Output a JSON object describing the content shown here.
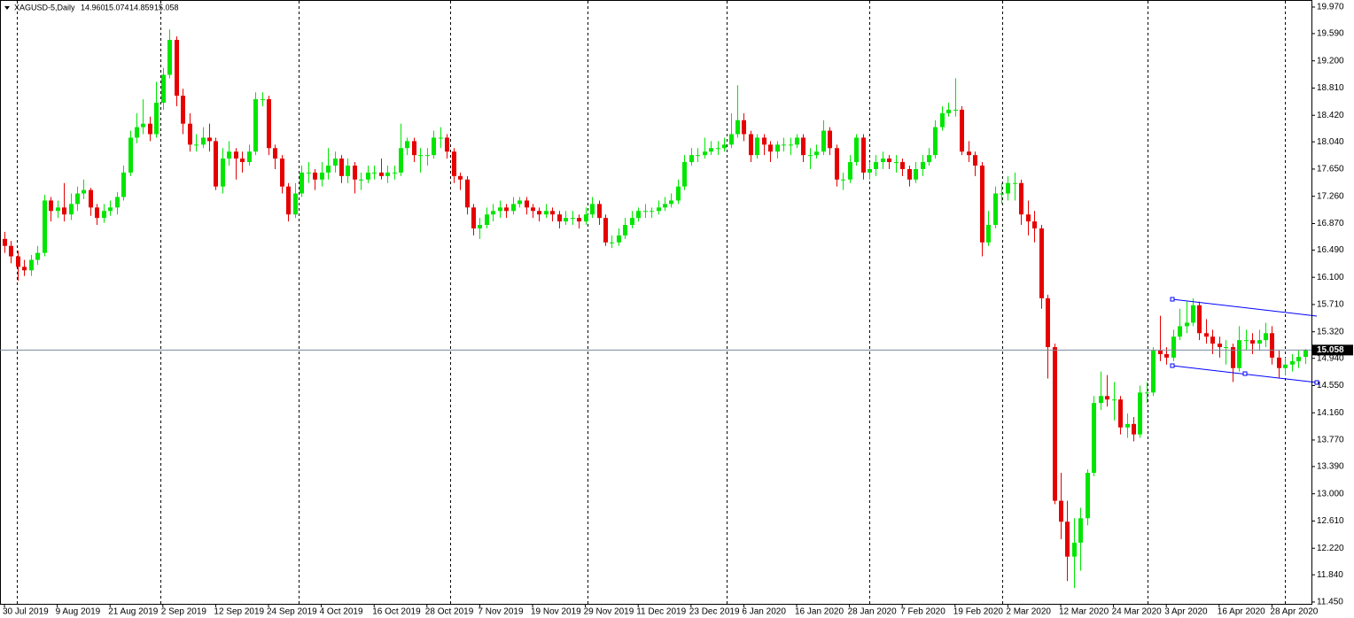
{
  "chart_data": {
    "type": "candlestick",
    "title": "XAGUSD-5,Daily",
    "title_values": [
      "14.960",
      "15.074",
      "14.859",
      "15.058"
    ],
    "up_color": "#00e600",
    "down_color": "#e60000",
    "ylim": [
      11.424,
      20.071
    ],
    "yticks": [
      {
        "value": 19.97,
        "label": "19.970"
      },
      {
        "value": 19.59,
        "label": "19.590"
      },
      {
        "value": 19.2,
        "label": "19.200"
      },
      {
        "value": 18.81,
        "label": "18.810"
      },
      {
        "value": 18.42,
        "label": "18.420"
      },
      {
        "value": 18.04,
        "label": "18.040"
      },
      {
        "value": 17.65,
        "label": "17.650"
      },
      {
        "value": 17.26,
        "label": "17.260"
      },
      {
        "value": 16.87,
        "label": "16.870"
      },
      {
        "value": 16.49,
        "label": "16.490"
      },
      {
        "value": 16.1,
        "label": "16.100"
      },
      {
        "value": 15.71,
        "label": "15.710"
      },
      {
        "value": 15.32,
        "label": "15.320"
      },
      {
        "value": 14.94,
        "label": "14.940"
      },
      {
        "value": 14.55,
        "label": "14.550"
      },
      {
        "value": 14.16,
        "label": "14.160"
      },
      {
        "value": 13.77,
        "label": "13.770"
      },
      {
        "value": 13.39,
        "label": "13.390"
      },
      {
        "value": 13,
        "label": "13.000"
      },
      {
        "value": 12.61,
        "label": "12.610"
      },
      {
        "value": 12.22,
        "label": "12.220"
      },
      {
        "value": 11.84,
        "label": "11.840"
      },
      {
        "value": 11.45,
        "label": "11.450"
      }
    ],
    "last_price": {
      "value": 15.058,
      "label": "15.058"
    },
    "categories": [
      "30 Jul 2019",
      null,
      null,
      null,
      null,
      null,
      null,
      null,
      "9 Aug 2019",
      null,
      null,
      null,
      null,
      null,
      null,
      null,
      "21 Aug 2019",
      null,
      null,
      null,
      null,
      null,
      null,
      null,
      "2 Sep 2019",
      null,
      null,
      null,
      null,
      null,
      null,
      null,
      "12 Sep 2019",
      null,
      null,
      null,
      null,
      null,
      null,
      null,
      "24 Sep 2019",
      null,
      null,
      null,
      null,
      null,
      null,
      null,
      "4 Oct 2019",
      null,
      null,
      null,
      null,
      null,
      null,
      null,
      "16 Oct 2019",
      null,
      null,
      null,
      null,
      null,
      null,
      null,
      "28 Oct 2019",
      null,
      null,
      null,
      null,
      null,
      null,
      null,
      "7 Nov 2019",
      null,
      null,
      null,
      null,
      null,
      null,
      null,
      "19 Nov 2019",
      null,
      null,
      null,
      null,
      null,
      null,
      null,
      "29 Nov 2019",
      null,
      null,
      null,
      null,
      null,
      null,
      null,
      "11 Dec 2019",
      null,
      null,
      null,
      null,
      null,
      null,
      null,
      "23 Dec 2019",
      null,
      null,
      null,
      null,
      null,
      null,
      null,
      "6 Jan 2020",
      null,
      null,
      null,
      null,
      null,
      null,
      null,
      "16 Jan 2020",
      null,
      null,
      null,
      null,
      null,
      null,
      null,
      "28 Jan 2020",
      null,
      null,
      null,
      null,
      null,
      null,
      null,
      "7 Feb 2020",
      null,
      null,
      null,
      null,
      null,
      null,
      null,
      "19 Feb 2020",
      null,
      null,
      null,
      null,
      null,
      null,
      null,
      "2 Mar 2020",
      null,
      null,
      null,
      null,
      null,
      null,
      null,
      "12 Mar 2020",
      null,
      null,
      null,
      null,
      null,
      null,
      null,
      "24 Mar 2020",
      null,
      null,
      null,
      null,
      null,
      null,
      null,
      "3 Apr 2020",
      null,
      null,
      null,
      null,
      null,
      null,
      null,
      "16 Apr 2020",
      null,
      null,
      null,
      null,
      null,
      null,
      null,
      "28 Apr 2020",
      null,
      null,
      null,
      null,
      null
    ],
    "open": [
      16.65,
      16.55,
      16.4,
      16.25,
      16.2,
      16.35,
      16.45,
      17.2,
      17.05,
      17.1,
      17.0,
      17.15,
      17.3,
      17.35,
      17.1,
      16.95,
      17.05,
      17.1,
      17.25,
      17.6,
      18.1,
      18.25,
      18.3,
      18.15,
      18.6,
      19.0,
      19.5,
      18.7,
      18.3,
      18.0,
      18.0,
      18.1,
      18.05,
      17.4,
      17.8,
      17.9,
      17.8,
      17.75,
      17.9,
      18.65,
      18.65,
      17.95,
      17.8,
      17.4,
      17.0,
      17.3,
      17.6,
      17.6,
      17.5,
      17.6,
      17.7,
      17.8,
      17.55,
      17.7,
      17.5,
      17.5,
      17.6,
      17.6,
      17.55,
      17.6,
      17.6,
      17.95,
      18.05,
      17.85,
      17.85,
      17.85,
      18.1,
      18.1,
      17.9,
      17.55,
      17.5,
      17.1,
      16.8,
      16.85,
      17.0,
      17.05,
      17.1,
      17.05,
      17.15,
      17.2,
      17.1,
      17.05,
      17.0,
      17.05,
      17.0,
      16.9,
      16.95,
      16.95,
      16.9,
      17.0,
      17.15,
      16.95,
      16.6,
      16.6,
      16.7,
      16.85,
      16.95,
      17.05,
      17.05,
      17.05,
      17.1,
      17.15,
      17.2,
      17.4,
      17.75,
      17.85,
      17.85,
      17.9,
      17.95,
      17.95,
      18.0,
      18.15,
      18.35,
      18.15,
      17.85,
      18.1,
      18.0,
      17.9,
      18.0,
      18.0,
      18.0,
      18.1,
      17.85,
      17.85,
      17.9,
      18.2,
      17.95,
      17.5,
      17.5,
      17.75,
      18.1,
      17.6,
      17.65,
      17.75,
      17.8,
      17.75,
      17.75,
      17.65,
      17.5,
      17.65,
      17.75,
      17.85,
      18.25,
      18.45,
      18.5,
      18.5,
      17.9,
      17.85,
      17.7,
      16.6,
      16.85,
      17.3,
      17.3,
      17.45,
      17.45,
      17.0,
      16.9,
      16.8,
      15.8,
      15.1,
      12.9,
      12.6,
      12.1,
      12.3,
      12.65,
      13.3,
      14.3,
      14.4,
      14.35,
      14.35,
      13.95,
      14.0,
      13.85,
      14.45,
      14.45,
      15.05,
      15.0,
      14.95,
      15.25,
      15.4,
      15.45,
      15.7,
      15.3,
      15.25,
      15.15,
      15.1,
      15.1,
      14.8,
      15.2,
      15.2,
      15.15,
      15.2,
      15.3,
      14.95,
      14.8,
      14.85,
      14.9,
      14.96
    ],
    "high": [
      16.75,
      16.62,
      16.48,
      16.35,
      16.42,
      16.55,
      17.28,
      17.25,
      17.2,
      17.45,
      17.3,
      17.4,
      17.5,
      17.38,
      17.15,
      17.15,
      17.2,
      17.32,
      17.7,
      18.2,
      18.45,
      18.65,
      18.4,
      18.9,
      19.1,
      19.65,
      19.55,
      18.8,
      18.45,
      18.15,
      18.25,
      18.3,
      18.1,
      17.95,
      18.05,
      17.95,
      17.9,
      18.0,
      18.75,
      18.75,
      18.7,
      18.0,
      17.85,
      17.45,
      17.45,
      17.7,
      17.75,
      17.65,
      17.75,
      17.95,
      17.9,
      17.85,
      17.8,
      17.75,
      17.6,
      17.7,
      17.7,
      17.8,
      17.7,
      17.7,
      18.3,
      18.1,
      18.1,
      17.95,
      17.95,
      18.2,
      18.25,
      18.15,
      17.95,
      17.6,
      17.55,
      17.15,
      16.95,
      17.1,
      17.15,
      17.2,
      17.15,
      17.25,
      17.25,
      17.25,
      17.15,
      17.1,
      17.15,
      17.1,
      17.05,
      17.05,
      17.05,
      17.0,
      17.1,
      17.25,
      17.2,
      17.0,
      16.7,
      16.8,
      16.95,
      17.05,
      17.1,
      17.15,
      17.1,
      17.2,
      17.25,
      17.3,
      17.5,
      17.85,
      17.95,
      17.95,
      18.1,
      18.05,
      18.05,
      18.1,
      18.45,
      18.85,
      18.45,
      18.2,
      18.15,
      18.15,
      18.05,
      18.05,
      18.1,
      18.1,
      18.15,
      18.15,
      17.95,
      18.0,
      18.35,
      18.25,
      18.0,
      17.6,
      17.85,
      18.15,
      18.15,
      17.75,
      17.85,
      17.9,
      17.85,
      17.85,
      17.8,
      17.7,
      17.75,
      17.85,
      17.95,
      18.35,
      18.55,
      18.6,
      18.95,
      18.55,
      18.05,
      17.9,
      17.75,
      17.05,
      17.4,
      17.45,
      17.55,
      17.6,
      17.5,
      17.2,
      17.05,
      16.85,
      15.85,
      15.15,
      13.3,
      12.9,
      12.65,
      12.8,
      13.35,
      14.4,
      14.75,
      14.7,
      14.6,
      14.4,
      14.15,
      14.1,
      14.55,
      14.6,
      15.1,
      15.55,
      15.1,
      15.35,
      15.65,
      15.75,
      15.8,
      15.75,
      15.5,
      15.35,
      15.25,
      15.2,
      15.15,
      15.4,
      15.35,
      15.3,
      15.35,
      15.45,
      15.4,
      15.05,
      14.95,
      15.0,
      15.05,
      15.074
    ],
    "low": [
      16.45,
      16.3,
      16.05,
      16.12,
      16.12,
      16.28,
      16.4,
      16.9,
      16.95,
      16.9,
      16.92,
      17.05,
      17.22,
      16.98,
      16.85,
      16.88,
      16.98,
      17.0,
      17.2,
      17.55,
      18.02,
      18.15,
      18.05,
      18.1,
      18.5,
      18.95,
      18.55,
      18.15,
      17.9,
      17.9,
      17.95,
      17.9,
      17.35,
      17.3,
      17.7,
      17.5,
      17.6,
      17.7,
      17.85,
      18.55,
      17.85,
      17.65,
      17.3,
      16.9,
      16.95,
      17.25,
      17.45,
      17.35,
      17.4,
      17.5,
      17.6,
      17.45,
      17.45,
      17.3,
      17.35,
      17.45,
      17.5,
      17.5,
      17.45,
      17.5,
      17.55,
      17.85,
      17.75,
      17.6,
      17.7,
      17.8,
      17.95,
      17.8,
      17.45,
      17.35,
      17.0,
      16.7,
      16.65,
      16.8,
      16.9,
      16.95,
      16.95,
      17.0,
      17.1,
      17.0,
      16.95,
      16.9,
      16.95,
      16.9,
      16.8,
      16.85,
      16.85,
      16.8,
      16.85,
      16.95,
      16.85,
      16.55,
      16.52,
      16.55,
      16.65,
      16.8,
      16.9,
      16.95,
      16.95,
      17.0,
      17.05,
      17.1,
      17.15,
      17.35,
      17.7,
      17.75,
      17.8,
      17.85,
      17.85,
      17.9,
      17.95,
      18.1,
      18.05,
      17.75,
      17.8,
      17.85,
      17.75,
      17.8,
      17.9,
      17.85,
      17.95,
      17.75,
      17.65,
      17.8,
      17.85,
      17.85,
      17.4,
      17.35,
      17.45,
      17.7,
      17.5,
      17.5,
      17.55,
      17.65,
      17.65,
      17.6,
      17.55,
      17.4,
      17.45,
      17.55,
      17.7,
      17.8,
      18.2,
      18.4,
      18.4,
      17.85,
      17.75,
      17.55,
      16.4,
      16.55,
      16.8,
      17.15,
      17.2,
      17.2,
      16.85,
      16.7,
      16.6,
      15.65,
      14.65,
      12.85,
      12.35,
      11.75,
      11.65,
      11.9,
      12.55,
      13.25,
      14.2,
      14.25,
      14.05,
      13.85,
      13.8,
      13.75,
      13.8,
      14.3,
      14.4,
      14.9,
      14.85,
      14.9,
      15.2,
      15.3,
      15.4,
      15.2,
      15.15,
      15.0,
      14.95,
      14.85,
      14.6,
      14.75,
      15.05,
      15.0,
      15.05,
      15.1,
      14.85,
      14.65,
      14.7,
      14.75,
      14.8,
      14.859
    ],
    "close": [
      16.55,
      16.4,
      16.25,
      16.2,
      16.35,
      16.45,
      17.2,
      17.05,
      17.1,
      17.0,
      17.15,
      17.3,
      17.35,
      17.1,
      16.95,
      17.05,
      17.1,
      17.25,
      17.6,
      18.1,
      18.25,
      18.3,
      18.15,
      18.6,
      19.0,
      19.5,
      18.7,
      18.3,
      18.0,
      18.0,
      18.1,
      18.05,
      17.4,
      17.8,
      17.9,
      17.8,
      17.75,
      17.9,
      18.65,
      18.65,
      17.95,
      17.8,
      17.4,
      17.0,
      17.3,
      17.6,
      17.6,
      17.5,
      17.6,
      17.7,
      17.8,
      17.55,
      17.7,
      17.5,
      17.5,
      17.6,
      17.6,
      17.55,
      17.6,
      17.6,
      17.95,
      18.05,
      17.85,
      17.85,
      17.85,
      18.1,
      18.1,
      17.9,
      17.55,
      17.5,
      17.1,
      16.8,
      16.85,
      17.0,
      17.05,
      17.1,
      17.05,
      17.15,
      17.2,
      17.1,
      17.05,
      17.0,
      17.05,
      17.0,
      16.9,
      16.95,
      16.95,
      16.9,
      17.0,
      17.15,
      16.95,
      16.6,
      16.6,
      16.7,
      16.85,
      16.95,
      17.05,
      17.05,
      17.05,
      17.1,
      17.15,
      17.2,
      17.4,
      17.75,
      17.85,
      17.85,
      17.9,
      17.95,
      17.95,
      18.0,
      18.15,
      18.35,
      18.15,
      17.85,
      18.1,
      18.0,
      17.9,
      18.0,
      18.0,
      18.0,
      18.1,
      17.85,
      17.85,
      17.9,
      18.2,
      17.95,
      17.5,
      17.5,
      17.75,
      18.1,
      17.6,
      17.65,
      17.75,
      17.8,
      17.75,
      17.75,
      17.65,
      17.5,
      17.65,
      17.75,
      17.85,
      18.25,
      18.45,
      18.5,
      18.5,
      17.9,
      17.85,
      17.7,
      16.6,
      16.85,
      17.3,
      17.3,
      17.45,
      17.45,
      17.0,
      16.9,
      16.8,
      15.8,
      15.1,
      12.9,
      12.6,
      12.1,
      12.3,
      12.65,
      13.3,
      14.3,
      14.4,
      14.35,
      14.35,
      13.95,
      14.0,
      13.85,
      14.45,
      14.45,
      15.05,
      15.0,
      14.95,
      15.25,
      15.4,
      15.45,
      15.7,
      15.3,
      15.25,
      15.15,
      15.1,
      15.1,
      14.8,
      15.2,
      15.2,
      15.15,
      15.2,
      15.3,
      14.95,
      14.8,
      14.85,
      14.9,
      14.96,
      15.058
    ]
  }
}
